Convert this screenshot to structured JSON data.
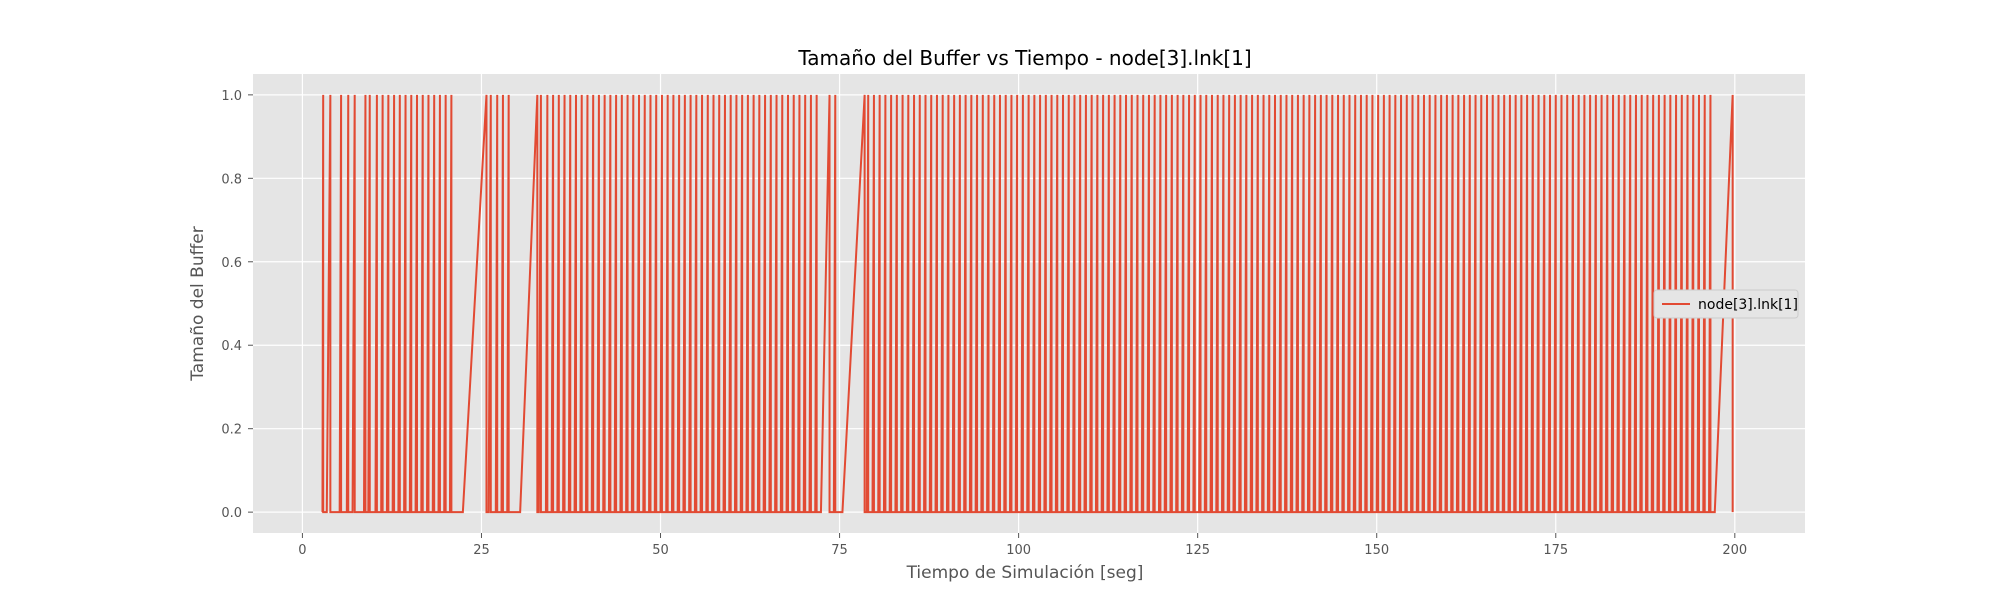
{
  "chart_data": {
    "type": "line",
    "title": "Tamaño del Buffer vs Tiempo - node[3].lnk[1]",
    "xlabel": "Tiempo de Simulación [seg]",
    "ylabel": "Tamaño del Buffer",
    "xlim": [
      -6.9,
      209.8
    ],
    "ylim": [
      -0.05,
      1.05
    ],
    "xticks": [
      0,
      25,
      50,
      75,
      100,
      125,
      150,
      175,
      200
    ],
    "xtick_labels": [
      "0",
      "25",
      "50",
      "75",
      "100",
      "125",
      "150",
      "175",
      "200"
    ],
    "yticks": [
      0.0,
      0.2,
      0.4,
      0.6,
      0.8,
      1.0
    ],
    "ytick_labels": [
      "0.0",
      "0.2",
      "0.4",
      "0.6",
      "0.8",
      "1.0"
    ],
    "grid": true,
    "legend_position": "center-right",
    "series": [
      {
        "name": "node[3].lnk[1]",
        "color": "#E24A33",
        "pattern": "sawtooth: value rises 0→1 at each rise_start→rise_end, then drops instantly to 0 at rise_end",
        "rise_intervals": [
          [
            2.8,
            2.9
          ],
          [
            3.4,
            3.9
          ],
          [
            5.2,
            5.4
          ],
          [
            6.2,
            6.4
          ],
          [
            7.0,
            7.3
          ],
          [
            8.6,
            8.8
          ],
          [
            9.2,
            9.4
          ],
          [
            10.2,
            10.4
          ],
          [
            11.0,
            11.2
          ],
          [
            11.8,
            12.0
          ],
          [
            12.6,
            12.8
          ],
          [
            13.4,
            13.6
          ],
          [
            14.2,
            14.4
          ],
          [
            15.0,
            15.2
          ],
          [
            15.8,
            16.0
          ],
          [
            16.6,
            16.8
          ],
          [
            17.4,
            17.6
          ],
          [
            18.2,
            18.4
          ],
          [
            19.0,
            19.2
          ],
          [
            19.8,
            20.0
          ],
          [
            20.6,
            20.8
          ],
          [
            22.4,
            25.7
          ],
          [
            26.0,
            26.3
          ],
          [
            27.0,
            27.2
          ],
          [
            27.8,
            28.0
          ],
          [
            28.6,
            28.8
          ],
          [
            30.4,
            32.8
          ],
          [
            33.0,
            33.3
          ],
          [
            34.0,
            34.2
          ],
          [
            34.8,
            35.0
          ],
          [
            35.6,
            35.8
          ],
          [
            36.4,
            36.6
          ],
          [
            37.2,
            37.4
          ],
          [
            38.0,
            38.2
          ],
          [
            38.8,
            39.0
          ],
          [
            39.6,
            39.8
          ],
          [
            40.4,
            40.6
          ],
          [
            41.2,
            41.4
          ],
          [
            42.0,
            42.2
          ],
          [
            42.8,
            43.0
          ],
          [
            43.6,
            43.8
          ],
          [
            44.4,
            44.6
          ],
          [
            45.2,
            45.4
          ],
          [
            46.0,
            46.2
          ],
          [
            46.8,
            47.0
          ],
          [
            47.6,
            47.8
          ],
          [
            48.4,
            48.6
          ],
          [
            49.2,
            49.4
          ],
          [
            50.0,
            50.2
          ],
          [
            50.8,
            51.0
          ],
          [
            51.6,
            51.8
          ],
          [
            52.4,
            52.6
          ],
          [
            53.2,
            53.4
          ],
          [
            54.0,
            54.2
          ],
          [
            54.8,
            55.0
          ],
          [
            55.6,
            55.8
          ],
          [
            56.4,
            56.6
          ],
          [
            57.2,
            57.4
          ],
          [
            58.0,
            58.2
          ],
          [
            58.8,
            59.0
          ],
          [
            59.6,
            59.8
          ],
          [
            60.4,
            60.6
          ],
          [
            61.2,
            61.4
          ],
          [
            62.0,
            62.2
          ],
          [
            62.8,
            63.0
          ],
          [
            63.6,
            63.8
          ],
          [
            64.4,
            64.6
          ],
          [
            65.2,
            65.4
          ],
          [
            66.0,
            66.2
          ],
          [
            66.8,
            67.0
          ],
          [
            67.6,
            67.8
          ],
          [
            68.4,
            68.6
          ],
          [
            69.2,
            69.4
          ],
          [
            70.0,
            70.2
          ],
          [
            70.8,
            71.0
          ],
          [
            71.6,
            71.8
          ],
          [
            72.4,
            73.6
          ],
          [
            74.2,
            74.4
          ],
          [
            75.4,
            78.5
          ],
          [
            78.8,
            79.0
          ],
          [
            79.6,
            79.8
          ],
          [
            80.4,
            80.6
          ],
          [
            81.2,
            81.4
          ],
          [
            82.0,
            82.2
          ],
          [
            82.8,
            83.0
          ],
          [
            83.6,
            83.8
          ],
          [
            84.4,
            84.6
          ],
          [
            85.2,
            85.4
          ],
          [
            86.0,
            86.2
          ],
          [
            86.8,
            87.0
          ],
          [
            87.6,
            87.8
          ],
          [
            88.4,
            88.6
          ],
          [
            89.2,
            89.4
          ],
          [
            90.0,
            90.2
          ],
          [
            90.8,
            91.0
          ],
          [
            91.6,
            91.8
          ],
          [
            92.4,
            92.6
          ],
          [
            93.2,
            93.4
          ],
          [
            94.0,
            94.2
          ],
          [
            94.8,
            95.0
          ],
          [
            95.6,
            95.8
          ],
          [
            96.4,
            96.6
          ],
          [
            97.2,
            97.4
          ],
          [
            98.0,
            98.2
          ],
          [
            98.8,
            99.0
          ],
          [
            99.6,
            99.8
          ],
          [
            100.4,
            100.6
          ],
          [
            101.2,
            101.4
          ],
          [
            102.0,
            102.2
          ],
          [
            102.8,
            103.0
          ],
          [
            103.6,
            103.8
          ],
          [
            104.4,
            104.6
          ],
          [
            105.2,
            105.4
          ],
          [
            106.0,
            106.2
          ],
          [
            106.8,
            107.0
          ],
          [
            107.6,
            107.8
          ],
          [
            108.4,
            108.6
          ],
          [
            109.2,
            109.4
          ],
          [
            110.0,
            110.2
          ],
          [
            110.8,
            111.0
          ],
          [
            111.6,
            111.8
          ],
          [
            112.4,
            112.6
          ],
          [
            113.2,
            113.4
          ],
          [
            114.0,
            114.2
          ],
          [
            114.8,
            115.0
          ],
          [
            115.6,
            115.8
          ],
          [
            116.4,
            116.6
          ],
          [
            117.2,
            117.4
          ],
          [
            118.0,
            118.2
          ],
          [
            118.8,
            119.0
          ],
          [
            119.6,
            119.8
          ],
          [
            120.4,
            120.6
          ],
          [
            121.2,
            121.4
          ],
          [
            122.0,
            122.2
          ],
          [
            122.8,
            123.0
          ],
          [
            123.6,
            123.8
          ],
          [
            124.4,
            124.6
          ],
          [
            125.2,
            125.4
          ],
          [
            126.0,
            126.2
          ],
          [
            126.8,
            127.0
          ],
          [
            127.6,
            127.8
          ],
          [
            128.4,
            128.6
          ],
          [
            129.2,
            129.4
          ],
          [
            130.0,
            130.2
          ],
          [
            130.8,
            131.0
          ],
          [
            131.6,
            131.8
          ],
          [
            132.4,
            132.6
          ],
          [
            133.2,
            133.4
          ],
          [
            134.0,
            134.2
          ],
          [
            134.8,
            135.0
          ],
          [
            135.6,
            135.8
          ],
          [
            136.4,
            136.6
          ],
          [
            137.2,
            137.4
          ],
          [
            138.0,
            138.2
          ],
          [
            138.8,
            139.0
          ],
          [
            139.6,
            139.8
          ],
          [
            140.4,
            140.6
          ],
          [
            141.2,
            141.4
          ],
          [
            142.0,
            142.2
          ],
          [
            142.8,
            143.0
          ],
          [
            143.6,
            143.8
          ],
          [
            144.4,
            144.6
          ],
          [
            145.2,
            145.4
          ],
          [
            146.0,
            146.2
          ],
          [
            146.8,
            147.0
          ],
          [
            147.6,
            147.8
          ],
          [
            148.4,
            148.6
          ],
          [
            149.2,
            149.4
          ],
          [
            150.0,
            150.2
          ],
          [
            150.8,
            151.0
          ],
          [
            151.6,
            151.8
          ],
          [
            152.4,
            152.6
          ],
          [
            153.2,
            153.4
          ],
          [
            154.0,
            154.2
          ],
          [
            154.8,
            155.0
          ],
          [
            155.6,
            155.8
          ],
          [
            156.4,
            156.6
          ],
          [
            157.2,
            157.4
          ],
          [
            158.0,
            158.2
          ],
          [
            158.8,
            159.0
          ],
          [
            159.6,
            159.8
          ],
          [
            160.4,
            160.6
          ],
          [
            161.2,
            161.4
          ],
          [
            162.0,
            162.2
          ],
          [
            162.8,
            163.0
          ],
          [
            163.6,
            163.8
          ],
          [
            164.4,
            164.6
          ],
          [
            165.2,
            165.4
          ],
          [
            166.0,
            166.2
          ],
          [
            166.8,
            167.0
          ],
          [
            167.6,
            167.8
          ],
          [
            168.4,
            168.6
          ],
          [
            169.2,
            169.4
          ],
          [
            170.0,
            170.2
          ],
          [
            170.8,
            171.0
          ],
          [
            171.6,
            171.8
          ],
          [
            172.4,
            172.6
          ],
          [
            173.2,
            173.4
          ],
          [
            174.0,
            174.2
          ],
          [
            174.8,
            175.0
          ],
          [
            175.6,
            175.8
          ],
          [
            176.4,
            176.6
          ],
          [
            177.2,
            177.4
          ],
          [
            178.0,
            178.2
          ],
          [
            178.8,
            179.0
          ],
          [
            179.6,
            179.8
          ],
          [
            180.4,
            180.6
          ],
          [
            181.2,
            181.4
          ],
          [
            182.0,
            182.2
          ],
          [
            182.8,
            183.0
          ],
          [
            183.6,
            183.8
          ],
          [
            184.4,
            184.6
          ],
          [
            185.2,
            185.4
          ],
          [
            186.0,
            186.2
          ],
          [
            186.8,
            187.0
          ],
          [
            187.6,
            187.8
          ],
          [
            188.4,
            188.6
          ],
          [
            189.2,
            189.4
          ],
          [
            190.0,
            190.2
          ],
          [
            190.8,
            191.0
          ],
          [
            191.6,
            191.8
          ],
          [
            192.4,
            192.6
          ],
          [
            193.2,
            193.4
          ],
          [
            194.0,
            194.2
          ],
          [
            194.8,
            195.0
          ],
          [
            195.6,
            195.8
          ],
          [
            196.4,
            196.6
          ],
          [
            197.2,
            199.7
          ]
        ]
      }
    ]
  },
  "colors": {
    "plot_background": "#E5E5E5",
    "grid": "#FFFFFF",
    "series": "#E24A33"
  }
}
